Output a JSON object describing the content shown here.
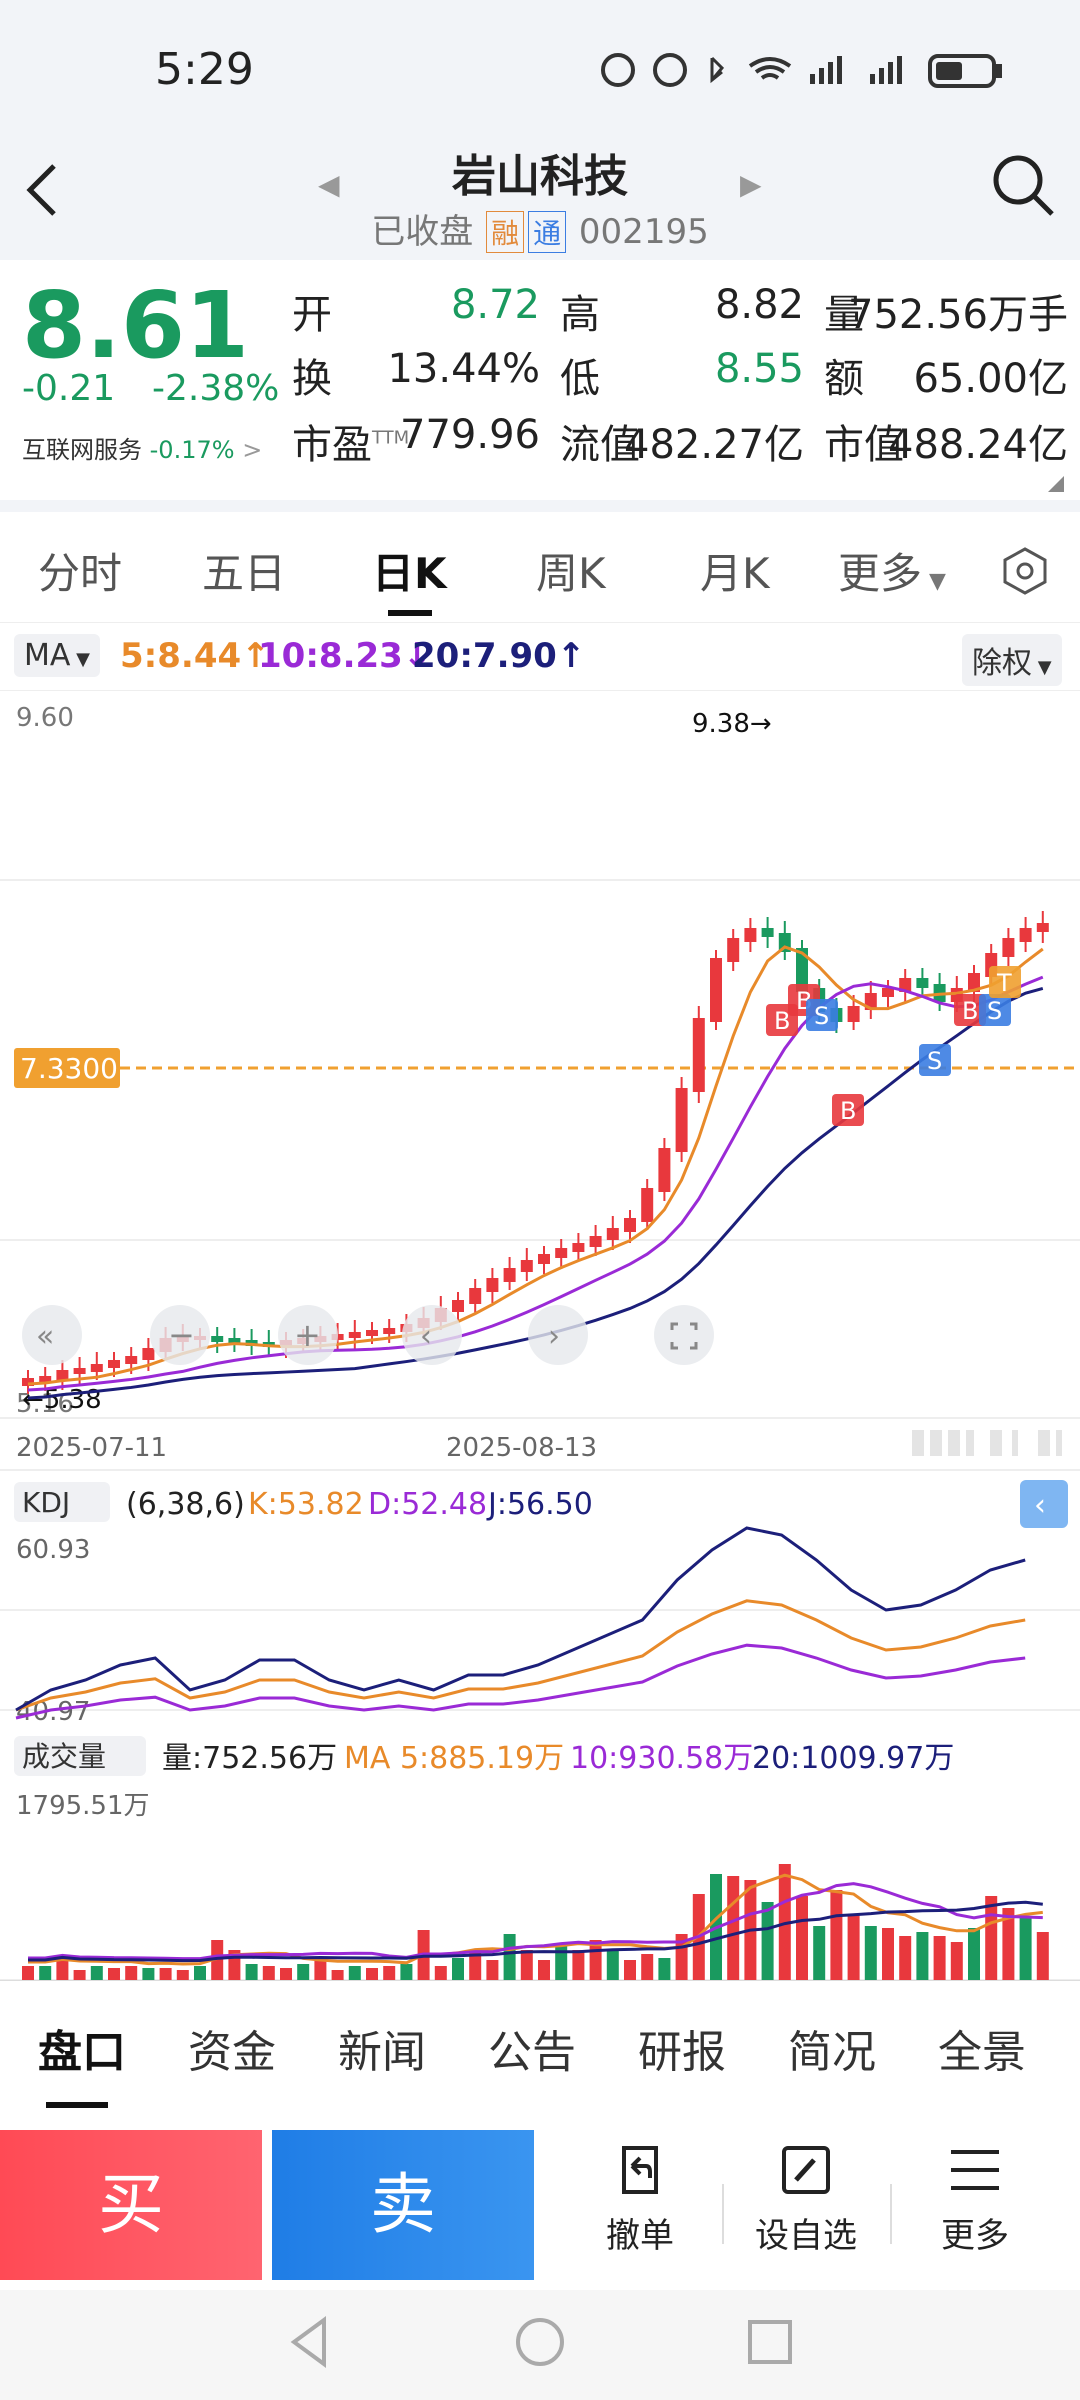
{
  "status": {
    "time": "5:29"
  },
  "stock": {
    "name": "岩山科技",
    "status": "已收盘",
    "tag_rong": "融",
    "tag_tong": "通",
    "code": "002195",
    "price": "8.61",
    "change": "-0.21",
    "change_pct": "-2.38%",
    "industry": "互联网服务",
    "industry_pct": "-0.17%"
  },
  "stats": {
    "open_label": "开",
    "open": "8.72",
    "high_label": "高",
    "high": "8.82",
    "vol_label": "量",
    "vol": "752.56万手",
    "turn_label": "换",
    "turn": "13.44%",
    "low_label": "低",
    "low": "8.55",
    "amt_label": "额",
    "amt": "65.00亿",
    "pe_label": "市盈",
    "pe_sup": "TTM",
    "pe": "779.96",
    "float_label": "流值",
    "float": "482.27亿",
    "mcap_label": "市值",
    "mcap": "488.24亿"
  },
  "tabs": [
    "分时",
    "五日",
    "日K",
    "周K",
    "月K",
    "更多"
  ],
  "ma_legend": {
    "selector": "MA",
    "ma5": "5:8.44↑",
    "ma10": "10:8.23↓",
    "ma20": "20:7.90↑",
    "adjust": "除权"
  },
  "kline": {
    "y_top": "9.60",
    "y_bottom": "5.16",
    "max_label": "9.38→",
    "min_label": "←5.38",
    "price_line": "7.3300",
    "date_left": "2025-07-11",
    "date_mid": "2025-08-13",
    "markers": [
      "B",
      "B",
      "S",
      "S",
      "B",
      "B",
      "S",
      "T"
    ]
  },
  "kdj": {
    "selector": "KDJ",
    "params": "(6,38,6)",
    "k": "K:53.82",
    "d": "D:52.48",
    "j": "J:56.50",
    "y_top": "60.93",
    "y_bottom": "40.97"
  },
  "volume": {
    "selector": "成交量",
    "vol": "量:752.56万",
    "ma5": "MA 5:885.19万",
    "ma10": "10:930.58万",
    "ma20": "20:1009.97万",
    "y_top": "1795.51万"
  },
  "bottom_tabs": [
    "盘口",
    "资金",
    "新闻",
    "公告",
    "研报",
    "简况",
    "全景"
  ],
  "actions": {
    "buy": "买",
    "sell": "卖",
    "cancel": "撤单",
    "watch": "设自选",
    "more": "更多"
  },
  "colors": {
    "up": "#e8383d",
    "down": "#1a9a5f",
    "ma5": "#e88a2a",
    "ma10": "#9a2ad6",
    "ma20": "#1c1f7a"
  }
}
